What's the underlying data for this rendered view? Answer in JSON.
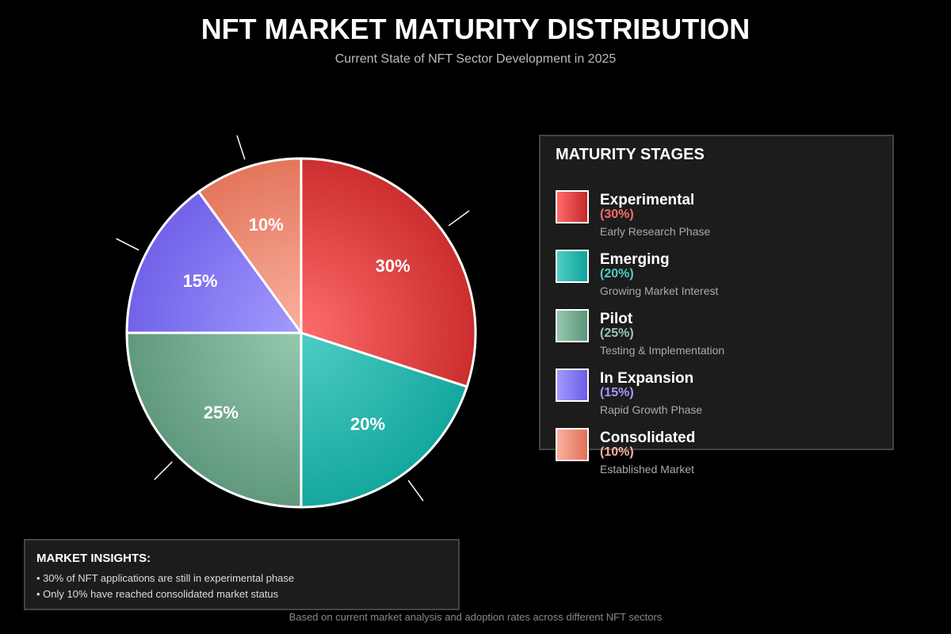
{
  "title": "NFT MARKET MATURITY DISTRIBUTION",
  "subtitle": "Current State of NFT Sector Development in 2025",
  "chart_data": {
    "type": "pie",
    "categories": [
      "Experimental",
      "Emerging",
      "Pilot",
      "In Expansion",
      "Consolidated"
    ],
    "values": [
      30,
      20,
      25,
      15,
      10
    ],
    "labels": [
      "30%",
      "20%",
      "25%",
      "15%",
      "10%"
    ],
    "colors": [
      [
        "#ff6b6b",
        "#c62828"
      ],
      [
        "#4ecdc4",
        "#0fa39b"
      ],
      [
        "#96c9b0",
        "#5b9478"
      ],
      [
        "#a29bfe",
        "#6c5ce7"
      ],
      [
        "#fab1a0",
        "#e17055"
      ]
    ],
    "start_angle": "top",
    "direction": "clockwise"
  },
  "legend": {
    "title": "MATURITY STAGES",
    "items": [
      {
        "name": "Experimental",
        "pct": "(30%)",
        "desc": "Early Research Phase",
        "color": "#ff6b6b"
      },
      {
        "name": "Emerging",
        "pct": "(20%)",
        "desc": "Growing Market Interest",
        "color": "#4ecdc4"
      },
      {
        "name": "Pilot",
        "pct": "(25%)",
        "desc": "Testing & Implementation",
        "color": "#96c9b0"
      },
      {
        "name": "In Expansion",
        "pct": "(15%)",
        "desc": "Rapid Growth Phase",
        "color": "#a29bfe"
      },
      {
        "name": "Consolidated",
        "pct": "(10%)",
        "desc": "Established Market",
        "color": "#fab1a0"
      }
    ]
  },
  "insights": {
    "title": "MARKET INSIGHTS:",
    "lines": [
      "• 30% of NFT applications are still in experimental phase",
      "• Only 10% have reached consolidated market status"
    ]
  },
  "footer": "Based on current market analysis and adoption rates across different NFT sectors"
}
